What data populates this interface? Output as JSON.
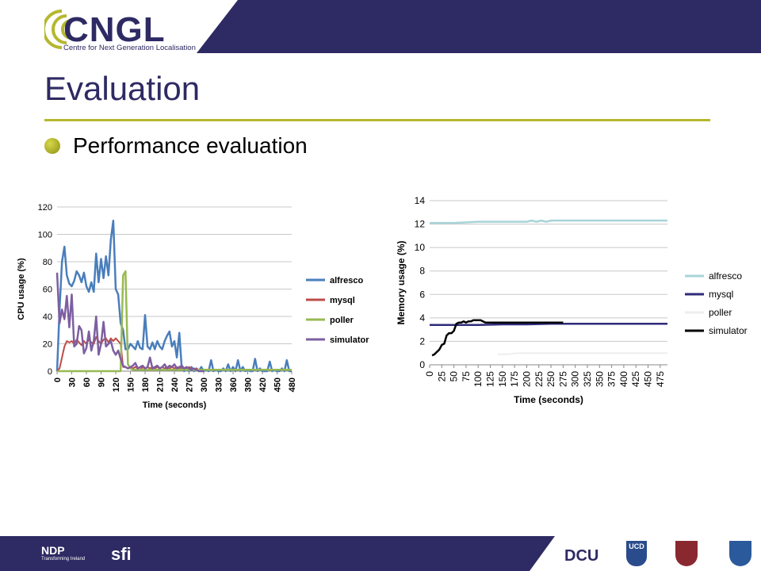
{
  "header": {
    "logo_text": "CNGL",
    "logo_subtitle": "Centre for Next Generation Localisation",
    "colors": {
      "band": "#2e2a63",
      "accent": "#b5b82e"
    }
  },
  "slide": {
    "title": "Evaluation",
    "bullet": "Performance evaluation"
  },
  "footer": {
    "logos": [
      {
        "name": "ndp-logo",
        "text": "NDP",
        "subtext": "Transforming Ireland"
      },
      {
        "name": "sfi-logo",
        "text": "sfi"
      },
      {
        "name": "dcu-logo",
        "text": "DCU"
      },
      {
        "name": "ucd-logo",
        "text": "UCD"
      },
      {
        "name": "tcd-crest",
        "text": ""
      },
      {
        "name": "ul-crest",
        "text": ""
      }
    ]
  },
  "chart_data": [
    {
      "type": "line",
      "ylabel": "CPU usage (%)",
      "xlabel": "Time (seconds)",
      "ylim": [
        0,
        120
      ],
      "yticks": [
        "0",
        "20",
        "40",
        "60",
        "80",
        "100",
        "120"
      ],
      "xticks": [
        "0",
        "30",
        "60",
        "90",
        "120",
        "150",
        "180",
        "210",
        "240",
        "270",
        "300",
        "330",
        "360",
        "390",
        "420",
        "450",
        "480"
      ],
      "xlim": [
        0,
        480
      ],
      "grid": true,
      "legend_position": "right",
      "series": [
        {
          "name": "alfresco",
          "color": "#4a7ebb",
          "x": [
            0,
            5,
            10,
            15,
            20,
            25,
            30,
            35,
            40,
            45,
            50,
            55,
            60,
            65,
            70,
            75,
            80,
            85,
            90,
            95,
            100,
            105,
            110,
            115,
            120,
            125,
            130,
            135,
            140,
            145,
            150,
            155,
            160,
            165,
            170,
            175,
            180,
            185,
            190,
            195,
            200,
            205,
            210,
            215,
            220,
            225,
            230,
            235,
            240,
            245,
            250,
            255,
            260,
            265,
            270,
            275,
            280,
            285,
            290,
            295,
            300,
            305,
            310,
            315,
            320,
            325,
            330,
            335,
            340,
            345,
            350,
            355,
            360,
            365,
            370,
            375,
            380,
            385,
            390,
            395,
            400,
            405,
            410,
            415,
            420,
            425,
            430,
            435,
            440,
            445,
            450,
            455,
            460,
            465,
            470,
            475,
            480
          ],
          "values": [
            0,
            45,
            80,
            91,
            70,
            64,
            62,
            66,
            73,
            70,
            65,
            72,
            62,
            58,
            65,
            58,
            86,
            65,
            82,
            68,
            84,
            70,
            96,
            110,
            60,
            56,
            35,
            30,
            16,
            16,
            20,
            18,
            16,
            22,
            17,
            16,
            41,
            18,
            16,
            21,
            16,
            22,
            18,
            16,
            22,
            26,
            29,
            18,
            22,
            10,
            28,
            2,
            0,
            2,
            0,
            3,
            0,
            2,
            0,
            3,
            0,
            1,
            0,
            8,
            0,
            1,
            0,
            0,
            2,
            0,
            5,
            0,
            3,
            0,
            8,
            0,
            3,
            0,
            1,
            0,
            0,
            9,
            0,
            2,
            0,
            0,
            0,
            7,
            0,
            1,
            0,
            0,
            2,
            0,
            8,
            0,
            0
          ]
        },
        {
          "name": "mysql",
          "color": "#be4b48",
          "x": [
            0,
            5,
            10,
            15,
            20,
            25,
            30,
            35,
            40,
            45,
            50,
            55,
            60,
            65,
            70,
            75,
            80,
            85,
            90,
            95,
            100,
            105,
            110,
            115,
            120,
            125,
            130,
            135,
            140,
            145,
            150,
            155,
            160,
            165,
            170,
            175,
            180,
            185,
            190,
            195,
            200,
            205,
            210,
            215,
            220,
            225,
            230,
            235,
            240,
            245,
            250,
            255,
            260,
            265,
            270,
            275,
            280,
            285,
            290,
            295,
            300
          ],
          "values": [
            0,
            2,
            10,
            18,
            22,
            21,
            22,
            20,
            23,
            21,
            19,
            22,
            20,
            23,
            21,
            20,
            25,
            22,
            20,
            23,
            24,
            21,
            24,
            22,
            24,
            22,
            20,
            3,
            3,
            2,
            3,
            2,
            3,
            2,
            1,
            3,
            2,
            3,
            2,
            3,
            2,
            3,
            2,
            3,
            2,
            3,
            2,
            3,
            2,
            3,
            2,
            3,
            2,
            1,
            3,
            2,
            1,
            2,
            1,
            0,
            0
          ]
        },
        {
          "name": "poller",
          "color": "#98b954",
          "x": [
            0,
            5,
            10,
            130,
            135,
            140,
            145,
            150,
            155,
            160,
            170,
            180,
            190,
            200,
            210,
            220,
            230,
            240,
            250,
            260,
            270,
            280,
            290,
            300,
            330,
            360,
            390,
            420,
            450,
            480
          ],
          "values": [
            0,
            0,
            0,
            0,
            70,
            73,
            5,
            2,
            1,
            1,
            1,
            1,
            1,
            1,
            1,
            1,
            1,
            1,
            1,
            1,
            1,
            1,
            1,
            1,
            1,
            1,
            1,
            1,
            1,
            1
          ]
        },
        {
          "name": "simulator",
          "color": "#7d5fa0",
          "x": [
            0,
            5,
            10,
            15,
            20,
            25,
            30,
            35,
            40,
            45,
            50,
            55,
            60,
            65,
            70,
            75,
            80,
            85,
            90,
            95,
            100,
            105,
            110,
            115,
            120,
            125,
            130,
            135,
            140,
            145,
            150,
            155,
            160,
            165,
            170,
            175,
            180,
            185,
            190,
            195,
            200,
            205,
            210,
            215,
            220,
            225,
            230,
            235,
            240,
            245,
            250,
            255,
            260,
            265,
            270,
            275,
            280,
            285,
            290,
            295,
            300
          ],
          "values": [
            72,
            35,
            45,
            38,
            55,
            32,
            56,
            18,
            20,
            33,
            30,
            13,
            17,
            29,
            15,
            22,
            40,
            12,
            20,
            36,
            18,
            20,
            22,
            15,
            12,
            15,
            9,
            4,
            3,
            2,
            3,
            4,
            6,
            2,
            3,
            4,
            2,
            3,
            10,
            2,
            3,
            4,
            2,
            3,
            5,
            2,
            4,
            3,
            5,
            2,
            3,
            4,
            2,
            3,
            2,
            1,
            2,
            1,
            0,
            0,
            0
          ]
        }
      ]
    },
    {
      "type": "line",
      "ylabel": "Memory usage (%)",
      "xlabel": "Time (seconds)",
      "ylim": [
        0,
        14
      ],
      "yticks": [
        "0",
        "2",
        "4",
        "6",
        "8",
        "10",
        "12",
        "14"
      ],
      "xticks": [
        "0",
        "25",
        "50",
        "75",
        "100",
        "125",
        "150",
        "175",
        "200",
        "225",
        "250",
        "275",
        "300",
        "325",
        "350",
        "375",
        "400",
        "425",
        "450",
        "475"
      ],
      "xlim": [
        0,
        490
      ],
      "grid": true,
      "legend_position": "right",
      "series": [
        {
          "name": "alfresco",
          "color": "#a8d4d8",
          "x": [
            0,
            25,
            50,
            75,
            100,
            125,
            150,
            175,
            200,
            210,
            220,
            230,
            240,
            250,
            275,
            300,
            325,
            350,
            375,
            400,
            425,
            450,
            475,
            490
          ],
          "values": [
            12.1,
            12.1,
            12.1,
            12.15,
            12.2,
            12.2,
            12.2,
            12.2,
            12.2,
            12.3,
            12.2,
            12.3,
            12.2,
            12.3,
            12.3,
            12.3,
            12.3,
            12.3,
            12.3,
            12.3,
            12.3,
            12.3,
            12.3,
            12.3
          ]
        },
        {
          "name": "mysql",
          "color": "#2e2a7a",
          "x": [
            0,
            50,
            100,
            150,
            200,
            250,
            300,
            350,
            400,
            450,
            490
          ],
          "values": [
            3.4,
            3.4,
            3.4,
            3.45,
            3.45,
            3.5,
            3.5,
            3.5,
            3.5,
            3.5,
            3.5
          ]
        },
        {
          "name": "poller",
          "color": "#eeeeee",
          "x": [
            140,
            160,
            180,
            200,
            250,
            300,
            350,
            400,
            450,
            490
          ],
          "values": [
            0.9,
            0.9,
            1.0,
            1.0,
            1.0,
            1.0,
            1.0,
            1.0,
            1.0,
            1.0
          ]
        },
        {
          "name": "simulator",
          "color": "#000000",
          "x": [
            5,
            10,
            15,
            20,
            25,
            30,
            35,
            40,
            45,
            50,
            55,
            60,
            65,
            70,
            75,
            80,
            85,
            90,
            95,
            100,
            105,
            110,
            115,
            120,
            130,
            140,
            150,
            175,
            200,
            225,
            250,
            275
          ],
          "values": [
            0.8,
            0.9,
            1.1,
            1.3,
            1.7,
            1.8,
            2.5,
            2.7,
            2.7,
            2.9,
            3.5,
            3.6,
            3.6,
            3.7,
            3.6,
            3.7,
            3.7,
            3.8,
            3.8,
            3.8,
            3.8,
            3.7,
            3.6,
            3.6,
            3.6,
            3.6,
            3.6,
            3.6,
            3.6,
            3.6,
            3.6,
            3.6
          ]
        }
      ]
    }
  ]
}
